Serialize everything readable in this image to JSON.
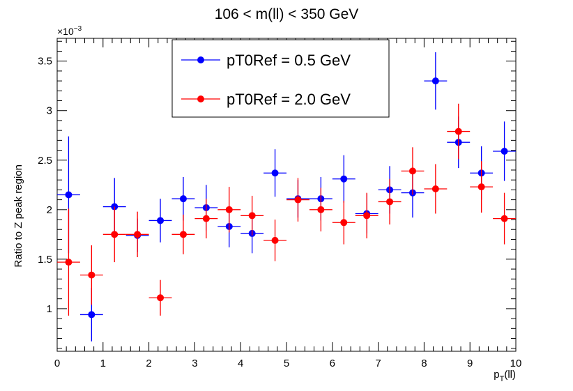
{
  "chart_data": {
    "type": "scatter",
    "title": "106 < m(ll) < 350 GeV",
    "xlabel": "p_T(ll)",
    "ylabel": "Ratio to Z peak region",
    "y_exponent_label": "×10",
    "y_exponent_power": "−3",
    "xlim": [
      0,
      10
    ],
    "ylim": [
      0.57,
      3.73
    ],
    "x_ticks": [
      "0",
      "1",
      "2",
      "3",
      "4",
      "5",
      "6",
      "7",
      "8",
      "9",
      "10"
    ],
    "y_ticks": [
      {
        "value": 1.0,
        "label": "1"
      },
      {
        "value": 1.5,
        "label": "1.5"
      },
      {
        "value": 2.0,
        "label": "2"
      },
      {
        "value": 2.5,
        "label": "2.5"
      },
      {
        "value": 3.0,
        "label": "3"
      },
      {
        "value": 3.5,
        "label": "3.5"
      }
    ],
    "legend_position": "top-center",
    "bin_width": 0.5,
    "x": [
      0.25,
      0.75,
      1.25,
      1.75,
      2.25,
      2.75,
      3.25,
      3.75,
      4.25,
      4.75,
      5.25,
      5.75,
      6.25,
      6.75,
      7.25,
      7.75,
      8.25,
      8.75,
      9.25,
      9.75
    ],
    "series": [
      {
        "name": "pT0Ref = 0.5 GeV",
        "color": "#0000ff",
        "values": [
          2.15,
          0.94,
          2.03,
          1.74,
          1.89,
          2.11,
          2.02,
          1.83,
          1.76,
          2.37,
          2.11,
          2.11,
          2.31,
          1.96,
          2.2,
          2.17,
          3.3,
          2.68,
          2.37,
          2.59
        ],
        "errors": [
          0.59,
          0.27,
          0.29,
          0.17,
          0.22,
          0.22,
          0.23,
          0.21,
          0.2,
          0.24,
          0.19,
          0.22,
          0.24,
          0.2,
          0.24,
          0.25,
          0.29,
          0.26,
          0.27,
          0.3
        ]
      },
      {
        "name": "pT0Ref = 2.0 GeV",
        "color": "#ff0000",
        "values": [
          1.47,
          1.34,
          1.75,
          1.75,
          1.11,
          1.75,
          1.91,
          2.0,
          1.94,
          1.69,
          2.1,
          2.0,
          1.87,
          1.94,
          2.08,
          2.39,
          2.21,
          2.79,
          2.23,
          1.91
        ],
        "errors": [
          0.54,
          0.3,
          0.28,
          0.23,
          0.18,
          0.2,
          0.2,
          0.23,
          0.2,
          0.21,
          0.22,
          0.22,
          0.22,
          0.23,
          0.23,
          0.24,
          0.25,
          0.28,
          0.26,
          0.26
        ]
      }
    ]
  }
}
